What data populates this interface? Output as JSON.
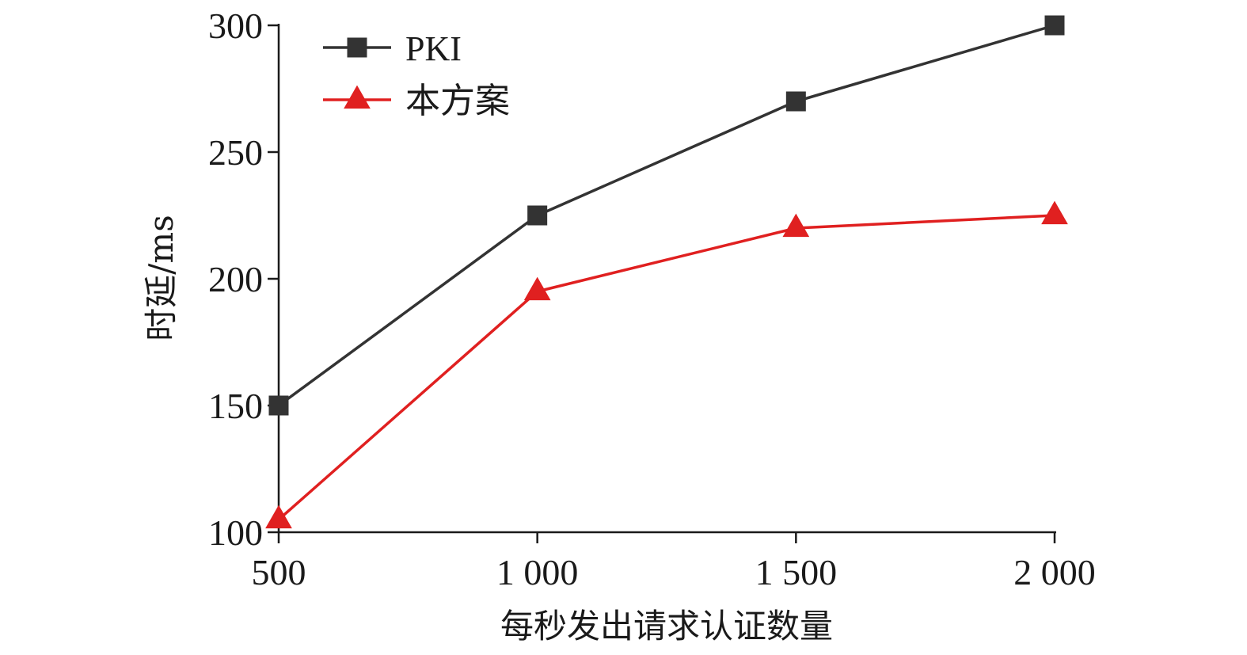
{
  "chart_data": {
    "type": "line",
    "title": "",
    "xlabel": "每秒发出请求认证数量",
    "ylabel": "时延/ms",
    "x": [
      500,
      1000,
      1500,
      2000
    ],
    "x_tick_labels": [
      "500",
      "1 000",
      "1 500",
      "2 000"
    ],
    "xlim": [
      500,
      2000
    ],
    "ylim": [
      100,
      300
    ],
    "y_ticks": [
      100,
      150,
      200,
      250,
      300
    ],
    "y_tick_labels": [
      "100",
      "150",
      "200",
      "250",
      "300"
    ],
    "grid": false,
    "legend_position": "top-left",
    "series": [
      {
        "name": "PKI",
        "values": [
          150,
          225,
          270,
          300
        ],
        "color": "#333333",
        "marker": "square"
      },
      {
        "name": "本方案",
        "values": [
          105,
          195,
          220,
          225
        ],
        "color": "#e02020",
        "marker": "triangle"
      }
    ]
  }
}
